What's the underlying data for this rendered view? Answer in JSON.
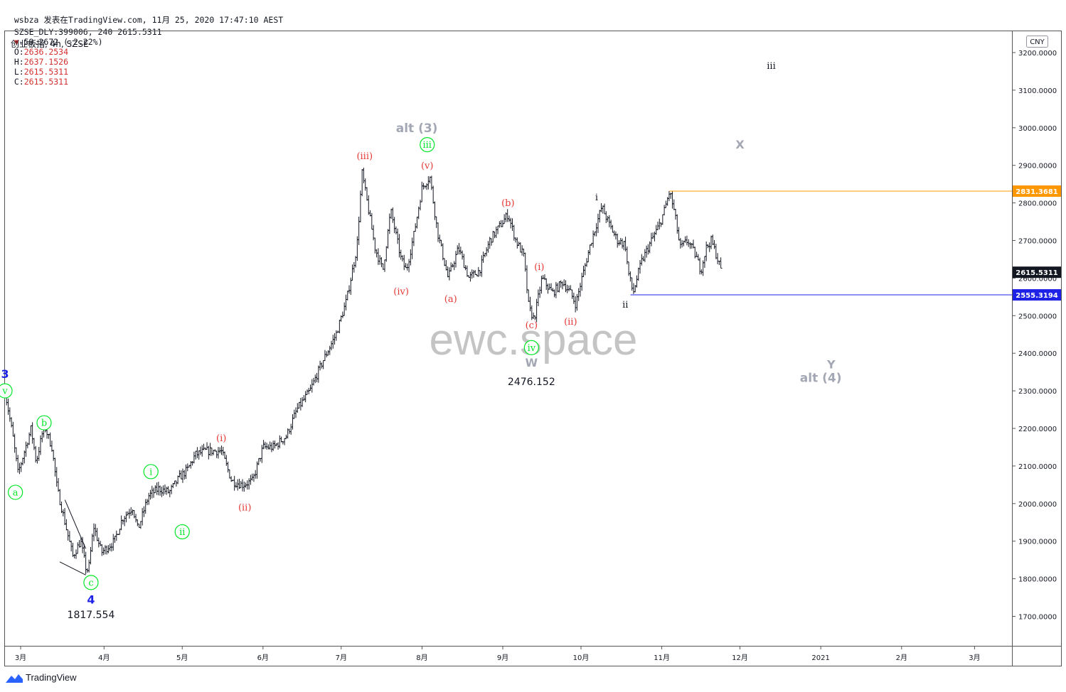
{
  "header": {
    "line1": "wsbza 发表在TradingView.com, 11月 25, 2020 17:47:10 AEST",
    "symbol": "SZSE_DLY:399006, 240 2615.5311",
    "change": "-59.2672 (-2.22%)",
    "o_label": "O:",
    "o_value": "2636.2534",
    "h_label": "H:",
    "h_value": "2637.1526",
    "l_label": "L:",
    "l_value": "2615.5311",
    "c_label": "C:",
    "c_value": "2615.5311"
  },
  "legend_title": "创业板指, 4h, SZSE",
  "currency": "CNY",
  "watermark": "ewc.space",
  "footer": {
    "brand": "TradingView"
  },
  "colors": {
    "bar": "#131722",
    "red": "#e53935",
    "green": "#00e626",
    "blue": "#1e22e6",
    "grey": "#a3a7b3",
    "orange": "#ff9800",
    "navy": "#1e22e6",
    "dark": "#131722"
  },
  "chart_data": {
    "type": "ohlc",
    "title": "创业板指, 4h, SZSE",
    "ylim": [
      1600,
      3300
    ],
    "yticks": [
      "3200.0000",
      "3100.0000",
      "3000.0000",
      "2900.0000",
      "2800.0000",
      "2700.0000",
      "2600.0000",
      "2500.0000",
      "2400.0000",
      "2300.0000",
      "2200.0000",
      "2100.0000",
      "2000.0000",
      "1900.0000",
      "1800.0000",
      "1700.0000"
    ],
    "ytick_values": [
      3200,
      3100,
      3000,
      2900,
      2800,
      2700,
      2600,
      2500,
      2400,
      2300,
      2200,
      2100,
      2000,
      1900,
      1800,
      1700
    ],
    "xticks": [
      {
        "label": "3月",
        "day": -1
      },
      {
        "label": "4月",
        "day": 31
      },
      {
        "label": "5月",
        "day": 61
      },
      {
        "label": "6月",
        "day": 92
      },
      {
        "label": "7月",
        "day": 122
      },
      {
        "label": "8月",
        "day": 153
      },
      {
        "label": "9月",
        "day": 184
      },
      {
        "label": "10月",
        "day": 214
      },
      {
        "label": "11月",
        "day": 245
      },
      {
        "label": "12月",
        "day": 275
      },
      {
        "label": "2021",
        "day": 306
      },
      {
        "label": "2月",
        "day": 337
      },
      {
        "label": "3月",
        "day": 365
      }
    ],
    "xlim": [
      -8,
      382
    ],
    "path_anchors": [
      [
        -7,
        2300
      ],
      [
        -4,
        2180
      ],
      [
        -2,
        2080
      ],
      [
        3,
        2200
      ],
      [
        5,
        2110
      ],
      [
        8,
        2210
      ],
      [
        11,
        2150
      ],
      [
        13,
        2040
      ],
      [
        17,
        1920
      ],
      [
        19,
        1860
      ],
      [
        22,
        1900
      ],
      [
        24,
        1830
      ],
      [
        25,
        1820
      ],
      [
        27,
        1940
      ],
      [
        30,
        1870
      ],
      [
        35,
        1900
      ],
      [
        38,
        1960
      ],
      [
        42,
        1990
      ],
      [
        44,
        1930
      ],
      [
        48,
        2020
      ],
      [
        52,
        2040
      ],
      [
        56,
        2030
      ],
      [
        60,
        2070
      ],
      [
        63,
        2090
      ],
      [
        66,
        2130
      ],
      [
        70,
        2140
      ],
      [
        76,
        2140
      ],
      [
        80,
        2060
      ],
      [
        84,
        2050
      ],
      [
        88,
        2060
      ],
      [
        92,
        2150
      ],
      [
        96,
        2150
      ],
      [
        101,
        2180
      ],
      [
        105,
        2250
      ],
      [
        110,
        2300
      ],
      [
        115,
        2380
      ],
      [
        120,
        2450
      ],
      [
        124,
        2540
      ],
      [
        128,
        2680
      ],
      [
        130,
        2880
      ],
      [
        132,
        2800
      ],
      [
        135,
        2680
      ],
      [
        138,
        2620
      ],
      [
        141,
        2780
      ],
      [
        145,
        2650
      ],
      [
        147,
        2620
      ],
      [
        150,
        2720
      ],
      [
        153,
        2840
      ],
      [
        156,
        2870
      ],
      [
        159,
        2720
      ],
      [
        163,
        2600
      ],
      [
        167,
        2680
      ],
      [
        171,
        2600
      ],
      [
        175,
        2620
      ],
      [
        179,
        2700
      ],
      [
        183,
        2740
      ],
      [
        186,
        2770
      ],
      [
        189,
        2700
      ],
      [
        192,
        2660
      ],
      [
        194,
        2520
      ],
      [
        196,
        2490
      ],
      [
        199,
        2600
      ],
      [
        203,
        2560
      ],
      [
        207,
        2590
      ],
      [
        210,
        2560
      ],
      [
        212,
        2530
      ],
      [
        214,
        2590
      ],
      [
        218,
        2700
      ],
      [
        222,
        2790
      ],
      [
        225,
        2740
      ],
      [
        228,
        2700
      ],
      [
        231,
        2690
      ],
      [
        232,
        2620
      ],
      [
        234,
        2560
      ],
      [
        237,
        2640
      ],
      [
        241,
        2700
      ],
      [
        244,
        2740
      ],
      [
        246,
        2780
      ],
      [
        248,
        2831
      ],
      [
        250,
        2770
      ],
      [
        252,
        2680
      ],
      [
        255,
        2700
      ],
      [
        258,
        2660
      ],
      [
        260,
        2620
      ],
      [
        262,
        2680
      ],
      [
        264,
        2700
      ],
      [
        266,
        2660
      ],
      [
        268,
        2615
      ]
    ],
    "hlines": [
      {
        "value": 2831.3681,
        "label": "2831.3681",
        "color": "orange",
        "from_day": 248
      },
      {
        "value": 2555.3194,
        "label": "2555.3194",
        "color": "navy",
        "from_day": 233
      }
    ],
    "last_price": {
      "value": 2615.5311,
      "label": "2615.5311"
    },
    "wave_labels": [
      {
        "text": "3",
        "day": -7,
        "price": 2345,
        "color": "blue",
        "size": 16
      },
      {
        "text": "v",
        "day": -7,
        "price": 2300,
        "color": "green",
        "circle": true
      },
      {
        "text": "a",
        "day": -3,
        "price": 2030,
        "color": "green",
        "circle": true
      },
      {
        "text": "b",
        "day": 8,
        "price": 2215,
        "color": "green",
        "circle": true
      },
      {
        "text": "c",
        "day": 26,
        "price": 1790,
        "color": "green",
        "circle": true
      },
      {
        "text": "4",
        "day": 26,
        "price": 1745,
        "color": "blue",
        "size": 16
      },
      {
        "text": "1817.554",
        "day": 26,
        "price": 1705,
        "color": "dark",
        "size": 14
      },
      {
        "text": "i",
        "day": 49,
        "price": 2085,
        "color": "green",
        "circle": true
      },
      {
        "text": "ii",
        "day": 61,
        "price": 1925,
        "color": "green",
        "circle": true
      },
      {
        "text": "(i)",
        "day": 76,
        "price": 2175,
        "color": "red"
      },
      {
        "text": "(ii)",
        "day": 85,
        "price": 1990,
        "color": "red"
      },
      {
        "text": "(iii)",
        "day": 131,
        "price": 2925,
        "color": "red"
      },
      {
        "text": "alt (3)",
        "day": 151,
        "price": 3000,
        "color": "grey",
        "size": 17
      },
      {
        "text": "iii",
        "day": 155,
        "price": 2955,
        "color": "green",
        "circle": true
      },
      {
        "text": "(v)",
        "day": 155,
        "price": 2900,
        "color": "red"
      },
      {
        "text": "(iv)",
        "day": 145,
        "price": 2565,
        "color": "red"
      },
      {
        "text": "(a)",
        "day": 164,
        "price": 2545,
        "color": "red"
      },
      {
        "text": "(b)",
        "day": 186,
        "price": 2800,
        "color": "red"
      },
      {
        "text": "(i)",
        "day": 198,
        "price": 2630,
        "color": "red"
      },
      {
        "text": "(c)",
        "day": 195,
        "price": 2475,
        "color": "red"
      },
      {
        "text": "(ii)",
        "day": 210,
        "price": 2485,
        "color": "red"
      },
      {
        "text": "iv",
        "day": 195,
        "price": 2415,
        "color": "green",
        "circle": true
      },
      {
        "text": "W",
        "day": 195,
        "price": 2375,
        "color": "grey",
        "size": 16
      },
      {
        "text": "2476.152",
        "day": 195,
        "price": 2325,
        "color": "dark",
        "size": 14
      },
      {
        "text": "i",
        "day": 220,
        "price": 2815,
        "color": "dark"
      },
      {
        "text": "ii",
        "day": 231,
        "price": 2530,
        "color": "dark"
      },
      {
        "text": "iii",
        "day": 287,
        "price": 3165,
        "color": "dark"
      },
      {
        "text": "X",
        "day": 275,
        "price": 2955,
        "color": "grey",
        "size": 16
      },
      {
        "text": "Y",
        "day": 310,
        "price": 2370,
        "color": "grey",
        "size": 16
      },
      {
        "text": "alt (4)",
        "day": 306,
        "price": 2335,
        "color": "grey",
        "size": 17
      }
    ],
    "triangle_lines": [
      [
        [
          16,
          2010
        ],
        [
          24,
          1880
        ]
      ],
      [
        [
          14,
          1845
        ],
        [
          24,
          1810
        ]
      ]
    ]
  }
}
